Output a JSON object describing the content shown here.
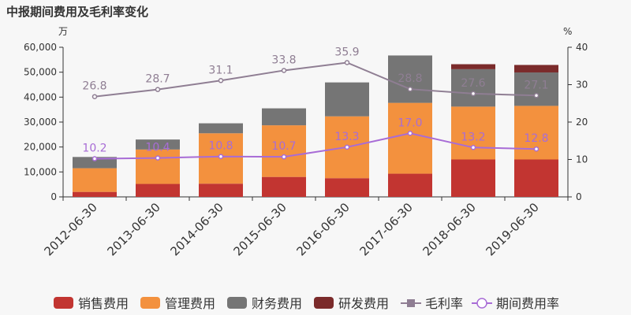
{
  "chart_data": {
    "type": "bar",
    "title": "中报期间费用及毛利率变化",
    "left_unit": "万",
    "right_unit": "%",
    "categories": [
      "2012-06-30",
      "2013-06-30",
      "2014-06-30",
      "2015-06-30",
      "2016-06-30",
      "2017-06-30",
      "2018-06-30",
      "2019-06-30"
    ],
    "stacked": true,
    "series": [
      {
        "name": "销售费用",
        "kind": "bar",
        "color": "#c23531",
        "values": [
          2000,
          5200,
          5300,
          8000,
          7500,
          9300,
          15000,
          15000
        ]
      },
      {
        "name": "管理费用",
        "kind": "bar",
        "color": "#f3913e",
        "values": [
          9500,
          13800,
          20200,
          20700,
          24800,
          28400,
          21200,
          21500
        ]
      },
      {
        "name": "财务费用",
        "kind": "bar",
        "color": "#757575",
        "values": [
          4500,
          4000,
          4000,
          6800,
          13600,
          19000,
          15000,
          13400
        ]
      },
      {
        "name": "研发费用",
        "kind": "bar",
        "color": "#7b2b2b",
        "values": [
          0,
          0,
          0,
          0,
          0,
          0,
          2000,
          3000
        ]
      },
      {
        "name": "毛利率",
        "kind": "line",
        "axis": "right",
        "color": "#8f7e93",
        "marker": "square",
        "values": [
          26.8,
          28.7,
          31.1,
          33.8,
          35.9,
          28.8,
          27.6,
          27.1
        ]
      },
      {
        "name": "期间费用率",
        "kind": "line",
        "axis": "right",
        "color": "#a86cd6",
        "marker": "circle",
        "values": [
          10.2,
          10.4,
          10.8,
          10.7,
          13.3,
          17.0,
          13.2,
          12.8
        ]
      }
    ],
    "y_left": {
      "min": 0,
      "max": 60000,
      "ticks": [
        "0",
        "10,000",
        "20,000",
        "30,000",
        "40,000",
        "50,000",
        "60,000"
      ]
    },
    "y_right": {
      "min": 0,
      "max": 40,
      "ticks": [
        "0",
        "10",
        "20",
        "30",
        "40"
      ]
    },
    "grid": false,
    "legend_position": "bottom"
  }
}
